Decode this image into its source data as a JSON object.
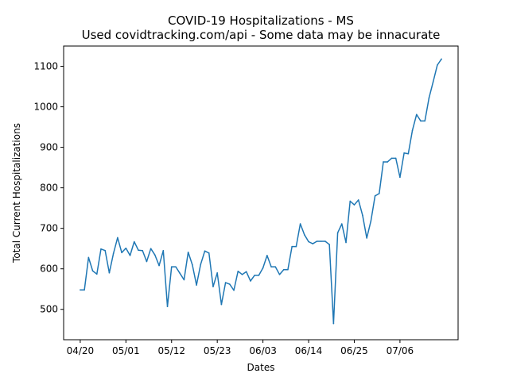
{
  "chart_data": {
    "type": "line",
    "title": "COVID-19 Hospitalizations - MS",
    "subtitle": "Used covidtracking.com/api - Some data may be innacurate",
    "xlabel": "Dates",
    "ylabel": "Total Current Hospitalizations",
    "x_ticks": [
      "04/20",
      "05/01",
      "05/12",
      "05/23",
      "06/03",
      "06/14",
      "06/25",
      "07/06"
    ],
    "x_range": [
      "2020-04-16",
      "2020-07-20"
    ],
    "ylim": [
      425,
      1150
    ],
    "y_ticks": [
      500,
      600,
      700,
      800,
      900,
      1000,
      1100
    ],
    "grid": false,
    "line_color": "#1f77b4",
    "series": [
      {
        "x": [
          "2020-04-20",
          "2020-04-21",
          "2020-04-22",
          "2020-04-23",
          "2020-04-24",
          "2020-04-25",
          "2020-04-26",
          "2020-04-27",
          "2020-04-28",
          "2020-04-29",
          "2020-04-30",
          "2020-05-01",
          "2020-05-02",
          "2020-05-03",
          "2020-05-04",
          "2020-05-05",
          "2020-05-06",
          "2020-05-07",
          "2020-05-08",
          "2020-05-09",
          "2020-05-10",
          "2020-05-11",
          "2020-05-12",
          "2020-05-13",
          "2020-05-14",
          "2020-05-15",
          "2020-05-16",
          "2020-05-17",
          "2020-05-18",
          "2020-05-19",
          "2020-05-20",
          "2020-05-21",
          "2020-05-22",
          "2020-05-23",
          "2020-05-24",
          "2020-05-25",
          "2020-05-26",
          "2020-05-27",
          "2020-05-28",
          "2020-05-29",
          "2020-05-30",
          "2020-05-31",
          "2020-06-01",
          "2020-06-02",
          "2020-06-03",
          "2020-06-04",
          "2020-06-05",
          "2020-06-06",
          "2020-06-07",
          "2020-06-08",
          "2020-06-09",
          "2020-06-10",
          "2020-06-11",
          "2020-06-12",
          "2020-06-13",
          "2020-06-14",
          "2020-06-15",
          "2020-06-16",
          "2020-06-17",
          "2020-06-18",
          "2020-06-19",
          "2020-06-20",
          "2020-06-21",
          "2020-06-22",
          "2020-06-23",
          "2020-06-24",
          "2020-06-25",
          "2020-06-26",
          "2020-06-27",
          "2020-06-28",
          "2020-06-29",
          "2020-06-30",
          "2020-07-01",
          "2020-07-02",
          "2020-07-03",
          "2020-07-04",
          "2020-07-05",
          "2020-07-06",
          "2020-07-07",
          "2020-07-08",
          "2020-07-09",
          "2020-07-10",
          "2020-07-11",
          "2020-07-12",
          "2020-07-13",
          "2020-07-14",
          "2020-07-15",
          "2020-07-16"
        ],
        "values": [
          548,
          548,
          628,
          595,
          587,
          649,
          645,
          590,
          638,
          677,
          640,
          651,
          633,
          667,
          646,
          645,
          618,
          650,
          634,
          608,
          645,
          507,
          605,
          605,
          589,
          573,
          641,
          610,
          560,
          611,
          644,
          639,
          556,
          590,
          512,
          566,
          562,
          547,
          594,
          586,
          593,
          570,
          584,
          584,
          602,
          633,
          605,
          605,
          586,
          598,
          598,
          655,
          655,
          711,
          684,
          667,
          662,
          668,
          668,
          668,
          660,
          465,
          689,
          711,
          665,
          767,
          758,
          770,
          732,
          676,
          718,
          780,
          786,
          864,
          864,
          873,
          873,
          826,
          886,
          884,
          942,
          981,
          965,
          965,
          1022,
          1062,
          1103,
          1118
        ]
      }
    ]
  }
}
